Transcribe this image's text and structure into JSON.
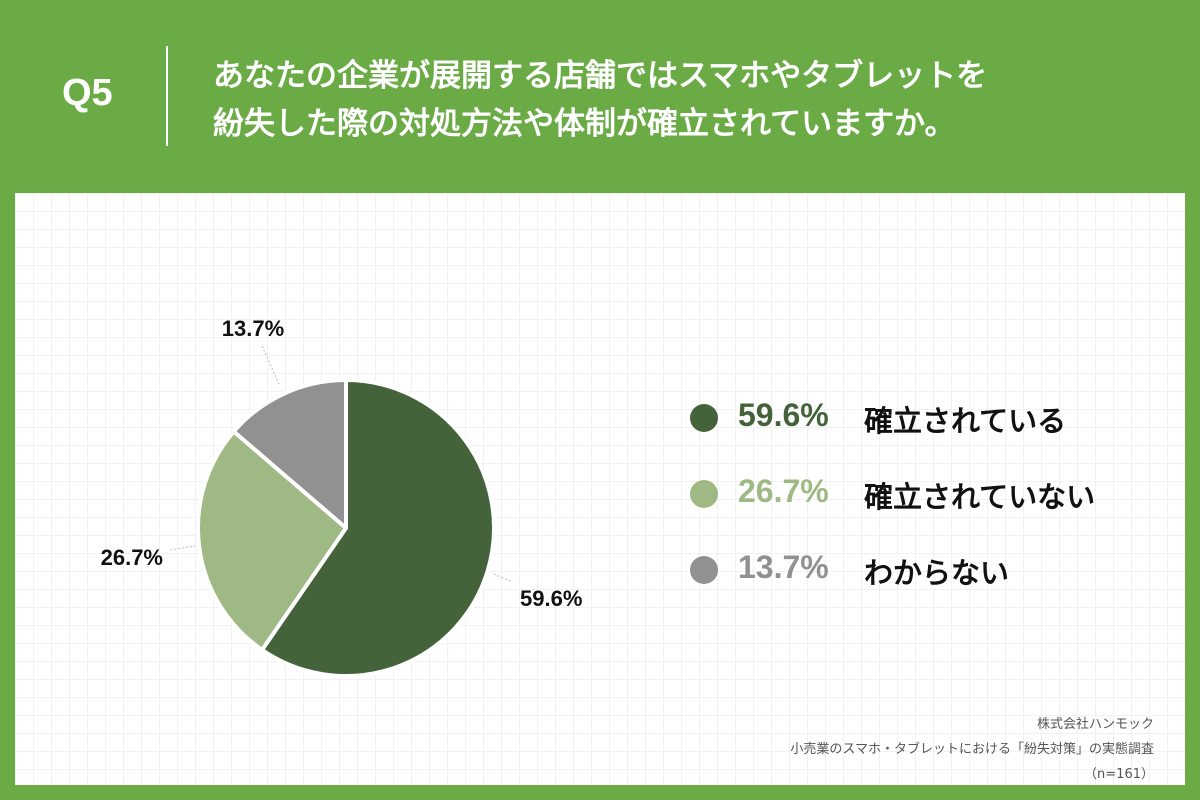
{
  "header": {
    "q_number": "Q5",
    "title_line1": "あなたの企業が展開する店舗ではスマホやタブレットを",
    "title_line2": "紛失した際の対処方法や体制が確立されていますか。"
  },
  "colors": {
    "background_green": "#6aab46",
    "slice_established": "#44633a",
    "slice_not_established": "#9fb985",
    "slice_unknown": "#919191"
  },
  "chart_data": {
    "type": "pie",
    "categories": [
      "確立されている",
      "確立されていない",
      "わからない"
    ],
    "values": [
      59.6,
      26.7,
      13.7
    ],
    "value_labels": [
      "59.6%",
      "26.7%",
      "13.7%"
    ],
    "colors": [
      "#44633a",
      "#9fb985",
      "#919191"
    ],
    "legend_position": "right"
  },
  "legend": {
    "items": [
      {
        "pct": "59.6%",
        "label": "確立されている",
        "color": "#44633a"
      },
      {
        "pct": "26.7%",
        "label": "確立されていない",
        "color": "#9fb985"
      },
      {
        "pct": "13.7%",
        "label": "わからない",
        "color": "#919191"
      }
    ]
  },
  "source": {
    "company": "株式会社ハンモック",
    "survey": "小売業のスマホ・タブレットにおける「紛失対策」の実態調査",
    "sample": "（n=161）"
  }
}
